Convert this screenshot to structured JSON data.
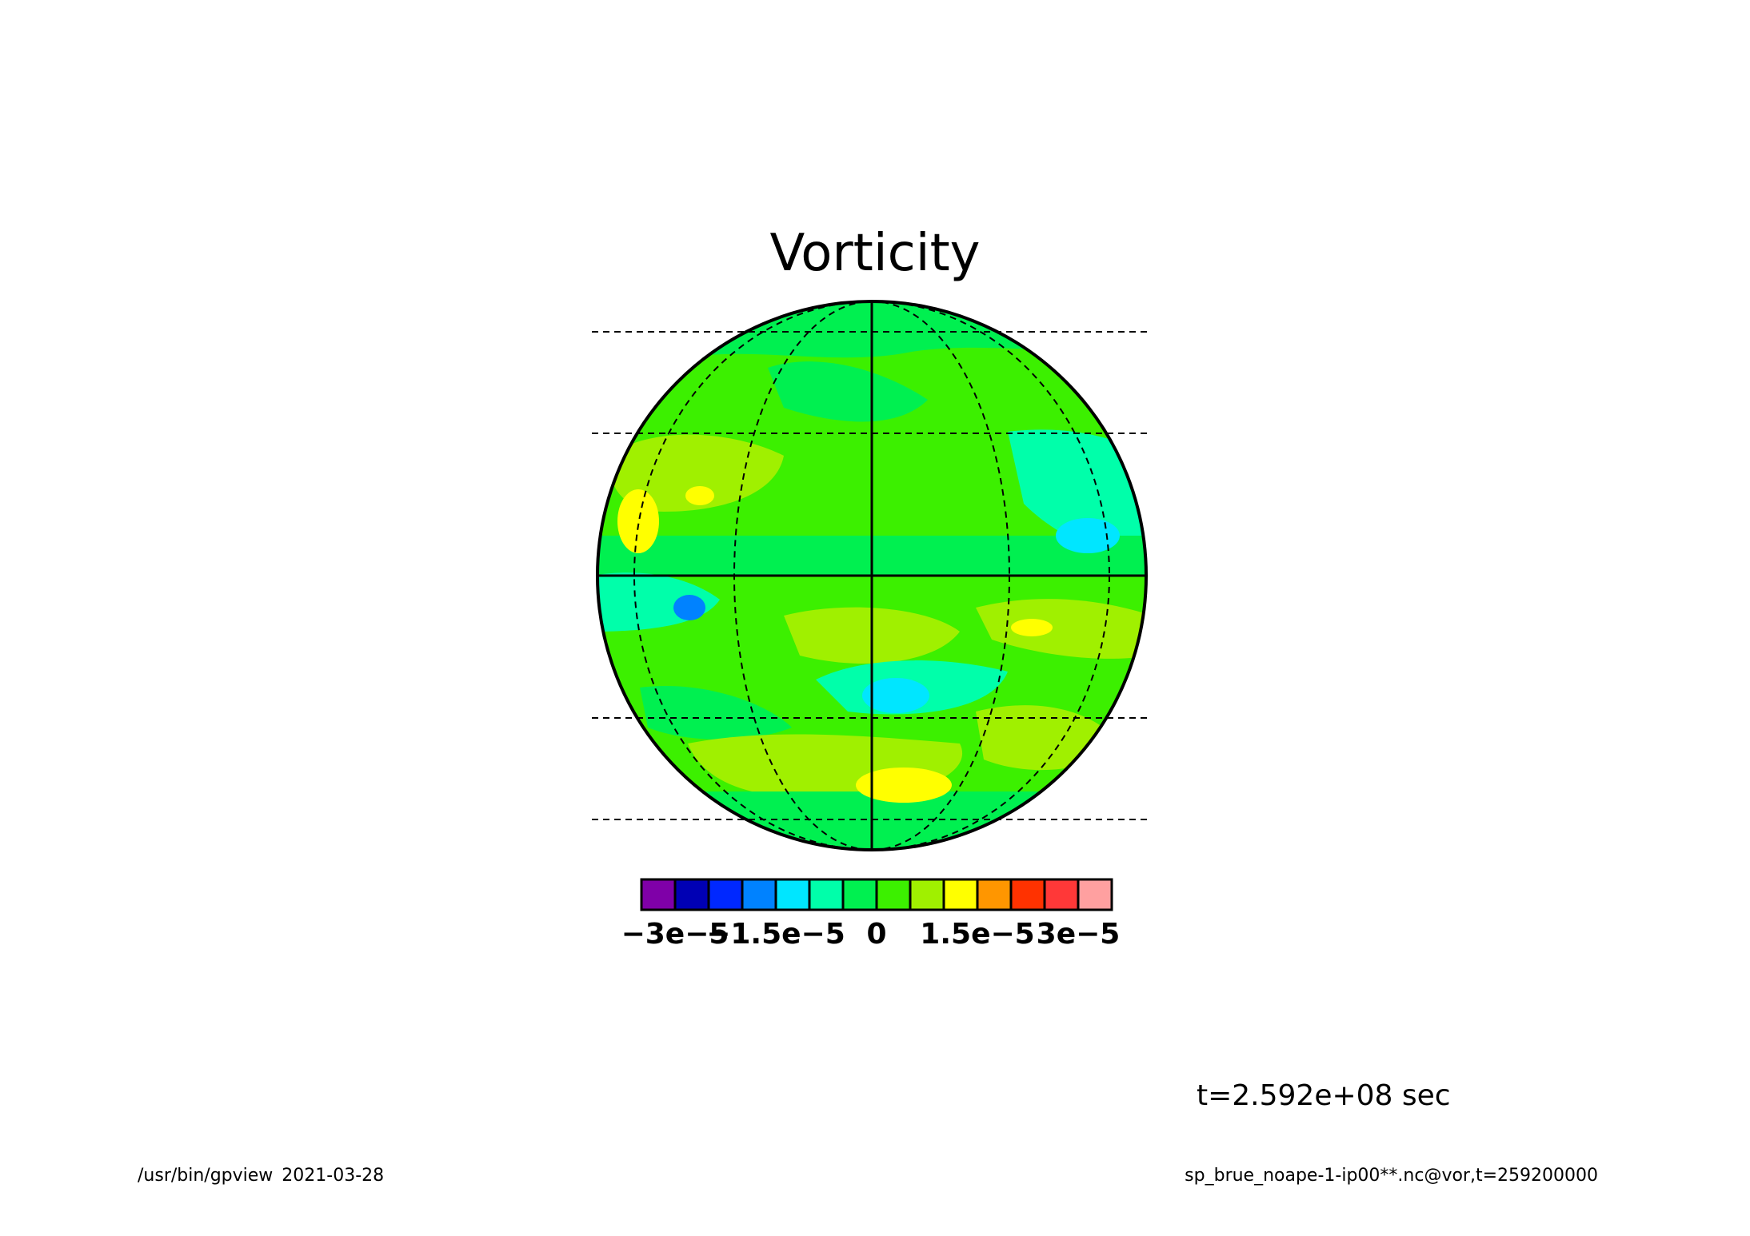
{
  "title": "Vorticity",
  "time_label": "t=2.592e+08 sec",
  "footer": {
    "left": "/usr/bin/gpview  2021-03-28",
    "right": "sp_brue_noape-1-ip00**.nc@vor,t=259200000"
  },
  "chart_data": {
    "type": "heatmap",
    "title": "Vorticity",
    "projection": "orthographic",
    "grid": true,
    "colorbar": {
      "placement": "bottom",
      "levels": [
        -3.5e-05,
        -3e-05,
        -2.5e-05,
        -2e-05,
        -1.5e-05,
        -1e-05,
        -5e-06,
        0,
        5e-06,
        1e-05,
        1.5e-05,
        2e-05,
        2.5e-05,
        3e-05,
        3.5e-05
      ],
      "colors": [
        "#7f00a8",
        "#0000b4",
        "#0028ff",
        "#0082ff",
        "#00e6ff",
        "#00ffaa",
        "#00f050",
        "#3cf000",
        "#a0f000",
        "#ffff00",
        "#ff9600",
        "#ff3200",
        "#ff3838",
        "#ffa0a0"
      ],
      "tick_labels": [
        {
          "text": "−3e−5",
          "value": -3e-05
        },
        {
          "text": "−1.5e−5",
          "value": -1.5e-05
        },
        {
          "text": "0",
          "value": 0
        },
        {
          "text": "1.5e−5",
          "value": 1.5e-05
        },
        {
          "text": "3e−5",
          "value": 3e-05
        }
      ]
    },
    "field_features": [
      {
        "name": "anomaly-nw-yellow",
        "value": 1.6e-05,
        "color": "#ffff00"
      },
      {
        "name": "anomaly-nw-yellow-2",
        "value": 1.6e-05,
        "color": "#ffff00"
      },
      {
        "name": "anomaly-ne-cyan",
        "value": -1.2e-05,
        "color": "#00e6ff"
      },
      {
        "name": "anomaly-w-blue",
        "value": -2.2e-05,
        "color": "#0082ff"
      },
      {
        "name": "anomaly-s-cyan",
        "value": -1.2e-05,
        "color": "#00e6ff"
      },
      {
        "name": "anomaly-e-yellow",
        "value": 1.6e-05,
        "color": "#ffff00"
      },
      {
        "name": "anomaly-s-yellow",
        "value": 1.6e-05,
        "color": "#ffff00"
      }
    ]
  }
}
